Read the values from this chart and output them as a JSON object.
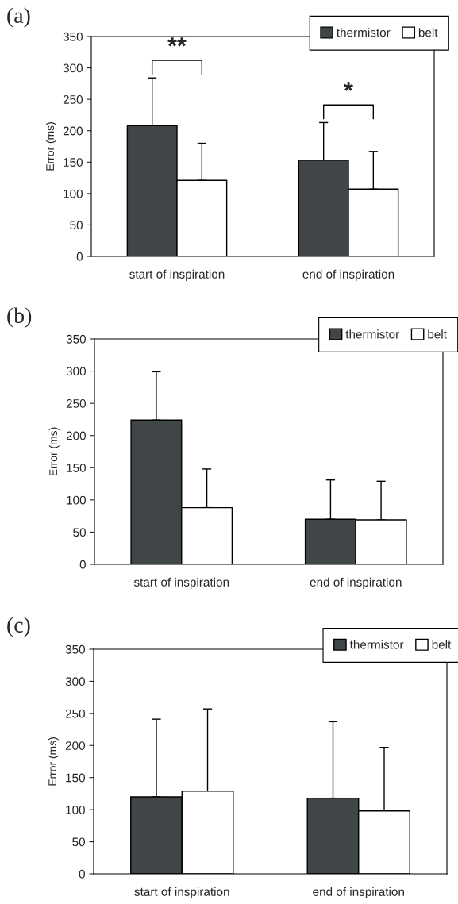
{
  "chart_data": [
    {
      "type": "bar",
      "title": "(a)",
      "ylabel": "Error (ms)",
      "categories": [
        "start of inspiration",
        "end of inspiration"
      ],
      "series": [
        {
          "name": "thermistor",
          "color": "#404647",
          "values": [
            208,
            153
          ],
          "errors": [
            [
              208,
              284
            ],
            [
              153,
              213
            ]
          ]
        },
        {
          "name": "belt",
          "color": "#ffffff",
          "values": [
            121,
            107
          ],
          "errors": [
            [
              121,
              180
            ],
            [
              107,
              167
            ]
          ]
        }
      ],
      "ylim": [
        0,
        350
      ],
      "yticks": [
        0,
        50,
        100,
        150,
        200,
        250,
        300,
        350
      ],
      "legend": "top right",
      "annotations": [
        "**",
        "*"
      ]
    },
    {
      "type": "bar",
      "title": "(b)",
      "ylabel": "Error (ms)",
      "categories": [
        "start of inspiration",
        "end of inspiration"
      ],
      "series": [
        {
          "name": "thermistor",
          "color": "#404647",
          "values": [
            224,
            70
          ],
          "errors": [
            [
              224,
              299
            ],
            [
              70,
              131
            ]
          ]
        },
        {
          "name": "belt",
          "color": "#ffffff",
          "values": [
            88,
            69
          ],
          "errors": [
            [
              88,
              148
            ],
            [
              69,
              129
            ]
          ]
        }
      ],
      "ylim": [
        0,
        350
      ],
      "yticks": [
        0,
        50,
        100,
        150,
        200,
        250,
        300,
        350
      ],
      "legend": "top right"
    },
    {
      "type": "bar",
      "title": "(c)",
      "ylabel": "Error (ms)",
      "categories": [
        "start of inspiration",
        "end of inspiration"
      ],
      "series": [
        {
          "name": "thermistor",
          "color": "#404647",
          "values": [
            120,
            118
          ],
          "errors": [
            [
              120,
              241
            ],
            [
              118,
              237
            ]
          ]
        },
        {
          "name": "belt",
          "color": "#ffffff",
          "values": [
            129,
            98
          ],
          "errors": [
            [
              129,
              257
            ],
            [
              98,
              197
            ]
          ]
        }
      ],
      "ylim": [
        0,
        350
      ],
      "yticks": [
        0,
        50,
        100,
        150,
        200,
        250,
        300,
        350
      ],
      "legend": "top right"
    }
  ]
}
